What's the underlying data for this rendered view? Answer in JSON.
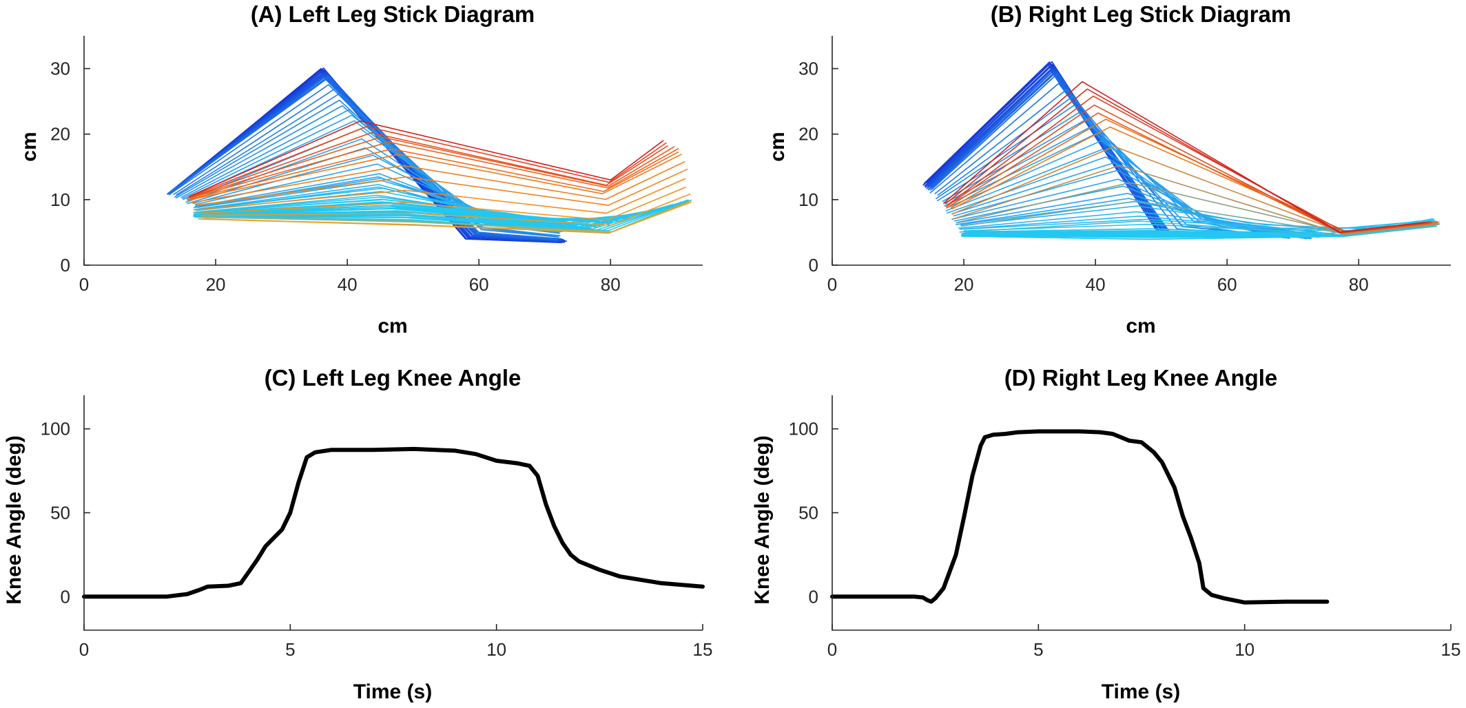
{
  "chart_data": [
    {
      "id": "A",
      "type": "line",
      "title": "(A) Left Leg Stick Diagram",
      "xlabel": "cm",
      "ylabel": "cm",
      "xlim": [
        0,
        94
      ],
      "ylim": [
        0,
        35
      ],
      "xticks": [
        0,
        20,
        40,
        60,
        80
      ],
      "yticks": [
        0,
        10,
        20,
        30
      ],
      "grid": false,
      "legend": "none",
      "colormap": [
        "#1533d6",
        "#1d6fe6",
        "#27a3f0",
        "#22c7f2",
        "#f0a020",
        "#f07818",
        "#e8381c",
        "#d21f1f"
      ],
      "keyframes": [
        {
          "x": [
            13,
            36,
            58,
            73
          ],
          "y": [
            11,
            30,
            4,
            3.5
          ],
          "colors": [
            0,
            1
          ],
          "n": 22
        },
        {
          "x": [
            13,
            37,
            60,
            72
          ],
          "y": [
            11,
            28.5,
            5,
            4
          ],
          "colors": [
            1,
            2
          ],
          "n": 8
        },
        {
          "x": [
            15,
            41,
            61,
            72
          ],
          "y": [
            10,
            22,
            6.5,
            5
          ],
          "colors": [
            2,
            2
          ],
          "n": 6
        },
        {
          "x": [
            17,
            45,
            62,
            74
          ],
          "y": [
            9,
            14,
            7.5,
            5.5
          ],
          "colors": [
            2,
            3
          ],
          "n": 10
        },
        {
          "x": [
            17,
            45,
            63,
            77
          ],
          "y": [
            8,
            10,
            8,
            5.5
          ],
          "colors": [
            3,
            3
          ],
          "n": 24
        },
        {
          "x": [
            17,
            50,
            80,
            92
          ],
          "y": [
            7.5,
            7,
            5,
            10
          ],
          "colors": [
            3,
            4
          ],
          "n": 6
        },
        {
          "x": [
            18,
            50,
            80,
            92
          ],
          "y": [
            7,
            6,
            5,
            9.5
          ],
          "colors": [
            4,
            5
          ],
          "n": 6
        },
        {
          "x": [
            16,
            48,
            79,
            91
          ],
          "y": [
            10,
            17,
            11,
            17
          ],
          "colors": [
            5,
            6
          ],
          "n": 6
        },
        {
          "x": [
            16,
            42,
            80,
            88
          ],
          "y": [
            10.5,
            22,
            13,
            19
          ],
          "colors": [
            6,
            7
          ],
          "n": 5
        }
      ]
    },
    {
      "id": "B",
      "type": "line",
      "title": "(B) Right Leg Stick Diagram",
      "xlabel": "cm",
      "ylabel": "cm",
      "xlim": [
        0,
        94
      ],
      "ylim": [
        0,
        35
      ],
      "xticks": [
        0,
        20,
        40,
        60,
        80
      ],
      "yticks": [
        0,
        10,
        20,
        30
      ],
      "grid": false,
      "legend": "none",
      "colormap": [
        "#1533d6",
        "#1d6fe6",
        "#27a3f0",
        "#22c7f2",
        "#f0a020",
        "#f07818",
        "#e8381c",
        "#d21f1f"
      ],
      "keyframes": [
        {
          "x": [
            14,
            33,
            50,
            64
          ],
          "y": [
            12.5,
            31,
            4.5,
            5
          ],
          "colors": [
            0,
            1
          ],
          "n": 20
        },
        {
          "x": [
            15,
            34,
            51,
            66
          ],
          "y": [
            11.5,
            29,
            5,
            4.5
          ],
          "colors": [
            1,
            2
          ],
          "n": 8
        },
        {
          "x": [
            17,
            40,
            56,
            72
          ],
          "y": [
            9,
            20,
            7,
            4
          ],
          "colors": [
            2,
            2
          ],
          "n": 8
        },
        {
          "x": [
            19,
            45,
            58,
            75
          ],
          "y": [
            6.5,
            11,
            7,
            4.5
          ],
          "colors": [
            2,
            3
          ],
          "n": 8
        },
        {
          "x": [
            20,
            48,
            78,
            91
          ],
          "y": [
            5,
            5.5,
            4.5,
            7
          ],
          "colors": [
            3,
            3
          ],
          "n": 18
        },
        {
          "x": [
            20,
            48,
            78,
            92
          ],
          "y": [
            4.5,
            4,
            4.5,
            6
          ],
          "colors": [
            3,
            5
          ],
          "n": 6
        },
        {
          "x": [
            18,
            42,
            78,
            92
          ],
          "y": [
            8.5,
            21,
            5,
            6.5
          ],
          "colors": [
            5,
            7
          ],
          "n": 6
        },
        {
          "x": [
            17,
            38,
            77,
            90
          ],
          "y": [
            9.5,
            28,
            5,
            6.5
          ],
          "colors": [
            6,
            7
          ],
          "n": 4
        }
      ]
    },
    {
      "id": "C",
      "type": "line",
      "title": "(C) Left Leg Knee Angle",
      "xlabel": "Time (s)",
      "ylabel": "Knee Angle (deg)",
      "xlim": [
        0,
        15
      ],
      "ylim": [
        -20,
        120
      ],
      "xticks": [
        0,
        5,
        10,
        15
      ],
      "yticks": [
        0,
        50,
        100
      ],
      "grid": false,
      "legend": "none",
      "series": [
        {
          "x": [
            0,
            1,
            2,
            2.5,
            2.8,
            3.0,
            3.5,
            3.8,
            4.0,
            4.2,
            4.4,
            4.6,
            4.8,
            5.0,
            5.2,
            5.4,
            5.6,
            6.0,
            7.0,
            8.0,
            9.0,
            9.5,
            10.0,
            10.5,
            10.8,
            11.0,
            11.2,
            11.4,
            11.6,
            11.8,
            12.0,
            12.5,
            13.0,
            14.0,
            15.0
          ],
          "y": [
            0,
            0,
            0,
            1.5,
            4,
            6,
            6.5,
            8,
            15,
            22,
            30,
            35,
            40,
            50,
            68,
            83,
            86,
            87.5,
            87.5,
            88,
            87,
            85,
            81,
            79.5,
            78,
            72,
            55,
            42,
            32,
            25,
            21,
            16,
            12,
            8,
            6
          ]
        }
      ]
    },
    {
      "id": "D",
      "type": "line",
      "title": "(D) Right Leg Knee Angle",
      "xlabel": "Time (s)",
      "ylabel": "Knee Angle (deg)",
      "xlim": [
        0,
        15
      ],
      "ylim": [
        -20,
        120
      ],
      "xticks": [
        0,
        5,
        10,
        15
      ],
      "yticks": [
        0,
        50,
        100
      ],
      "grid": false,
      "legend": "none",
      "series": [
        {
          "x": [
            0,
            1,
            2,
            2.2,
            2.3,
            2.4,
            2.5,
            2.7,
            3.0,
            3.2,
            3.4,
            3.6,
            3.7,
            3.9,
            4.2,
            4.5,
            5.0,
            5.5,
            6.0,
            6.5,
            6.8,
            7.0,
            7.2,
            7.5,
            7.8,
            8.0,
            8.3,
            8.5,
            8.7,
            8.9,
            9.0,
            9.2,
            9.5,
            10.0,
            11.0,
            12.0
          ],
          "y": [
            0,
            0,
            0,
            -0.5,
            -2,
            -3,
            -1,
            5,
            25,
            48,
            72,
            90,
            95,
            96.5,
            97,
            98,
            98.5,
            98.5,
            98.5,
            98,
            97,
            95,
            93,
            92,
            86,
            80,
            65,
            48,
            35,
            20,
            5,
            1,
            -1,
            -3.5,
            -3,
            -3
          ]
        }
      ]
    }
  ]
}
